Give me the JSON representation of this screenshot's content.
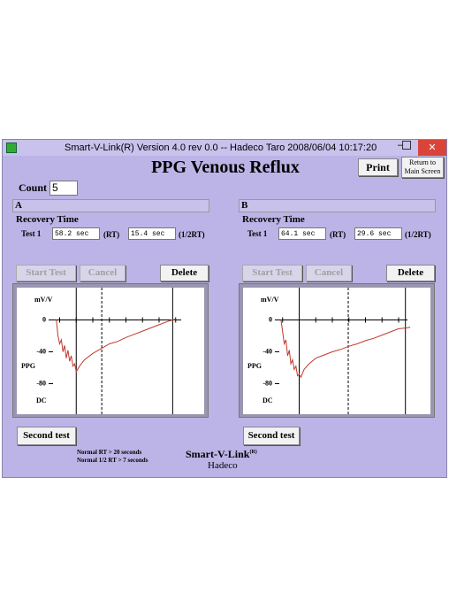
{
  "window": {
    "title": "Smart-V-Link(R)  Version 4.0 rev 0.0  -- Hadeco Taro  2008/06/04    10:17:20"
  },
  "header": {
    "title": "PPG Venous Reflux",
    "print": "Print",
    "return": "Return to Main Screen"
  },
  "count": {
    "label": "Count",
    "value": "5"
  },
  "panels": [
    {
      "name": "A",
      "section": "Recovery Time",
      "test": "Test 1",
      "rt": "58.2 sec",
      "rt_label": "(RT)",
      "half_rt": "15.4 sec",
      "half_rt_label": "(1/2RT)",
      "buttons": [
        "Start Test",
        "Cancel",
        "Delete"
      ],
      "second": "Second test",
      "chart": {
        "type": "line",
        "y_label": "mV/V",
        "labels": [
          "PPG",
          "DC"
        ],
        "color": "#c0392b",
        "x": [
          -12,
          -11.5,
          -11,
          -10,
          -9,
          -8,
          -7,
          -6,
          -5,
          -4,
          -3,
          -2,
          -1,
          0,
          2,
          5,
          10,
          15,
          20,
          25,
          30,
          35,
          40,
          45,
          50,
          55,
          58,
          60
        ],
        "values": [
          0,
          -10,
          -20,
          -30,
          -25,
          -40,
          -32,
          -48,
          -38,
          -52,
          -45,
          -58,
          -55,
          -65,
          -58,
          -50,
          -42,
          -36,
          -30,
          -27,
          -22,
          -18,
          -14,
          -10,
          -6,
          -2,
          0,
          1
        ],
        "xlim": [
          -14,
          66
        ],
        "ylim": [
          -115,
          35
        ],
        "yticks": [
          0,
          -40,
          -80
        ],
        "xticks": [
          -10,
          0,
          10,
          20,
          30,
          40,
          50,
          60
        ],
        "vlines": [
          {
            "x": 0,
            "style": "solid"
          },
          {
            "x": 15.4,
            "style": "dashed"
          },
          {
            "x": 58.2,
            "style": "solid"
          }
        ]
      }
    },
    {
      "name": "B",
      "section": "Recovery Time",
      "test": "Test 1",
      "rt": "64.1 sec",
      "rt_label": "(RT)",
      "half_rt": "29.6 sec",
      "half_rt_label": "(1/2RT)",
      "buttons": [
        "Start Test",
        "Cancel",
        "Delete"
      ],
      "second": "Second test",
      "chart": {
        "type": "line",
        "y_label": "mV/V",
        "labels": [
          "PPG",
          "DC"
        ],
        "color": "#c0392b",
        "x": [
          -11,
          -10,
          -9,
          -8,
          -7,
          -6,
          -5,
          -4,
          -3,
          -2,
          -1,
          0,
          1,
          3,
          6,
          10,
          15,
          20,
          25,
          30,
          35,
          40,
          45,
          50,
          55,
          60,
          65,
          67
        ],
        "values": [
          0,
          -15,
          -30,
          -25,
          -45,
          -38,
          -55,
          -50,
          -62,
          -58,
          -70,
          -68,
          -72,
          -62,
          -55,
          -48,
          -44,
          -40,
          -37,
          -33,
          -30,
          -26,
          -23,
          -19,
          -15,
          -11,
          -10,
          -9
        ],
        "xlim": [
          -12,
          68
        ],
        "ylim": [
          -115,
          35
        ],
        "yticks": [
          0,
          -40,
          -80
        ],
        "xticks": [
          -10,
          0,
          10,
          20,
          30,
          40,
          50,
          60
        ],
        "vlines": [
          {
            "x": 0,
            "style": "solid"
          },
          {
            "x": 29.6,
            "style": "dashed"
          },
          {
            "x": 64.1,
            "style": "solid"
          }
        ]
      }
    }
  ],
  "footer": {
    "notes": [
      "Normal RT > 20 seconds",
      "Normal 1/2 RT > 7 seconds"
    ],
    "brand": "Smart-V-Link",
    "brand_mark": "(R)",
    "company": "Hadeco"
  }
}
